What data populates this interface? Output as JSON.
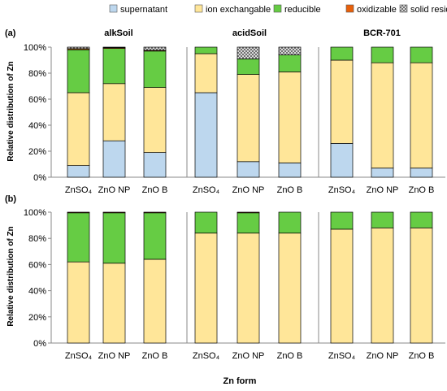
{
  "legend": [
    {
      "name": "supernatant",
      "color": "#BDD7EE",
      "pattern": "solid"
    },
    {
      "name": "ion exchangable",
      "color": "#FFE699",
      "pattern": "solid"
    },
    {
      "name": "reducible",
      "color": "#66CC44",
      "pattern": "solid"
    },
    {
      "name": "oxidizable",
      "color": "#E8600A",
      "pattern": "solid"
    },
    {
      "name": "solid residue",
      "color": "#AFAFAF",
      "pattern": "checker"
    }
  ],
  "ylabel": "Relative distribution of Zn",
  "xlabel": "Zn form",
  "panel_titles": [
    "alkSoil",
    "acidSoil",
    "BCR-701"
  ],
  "row_labels": [
    "(a)",
    "(b)"
  ],
  "categories": [
    "ZnSO₄",
    "ZnO NP",
    "ZnO B"
  ],
  "yticks": [
    "0%",
    "20%",
    "40%",
    "60%",
    "80%",
    "100%"
  ],
  "chart_data": [
    {
      "row": "(a)",
      "panel": "alkSoil",
      "type": "stacked-bar",
      "categories": [
        "ZnSO₄",
        "ZnO NP",
        "ZnO B"
      ],
      "ylim": [
        0,
        100
      ],
      "series": [
        {
          "name": "supernatant",
          "values": [
            9,
            28,
            19
          ]
        },
        {
          "name": "ion exchangable",
          "values": [
            56,
            44,
            50
          ]
        },
        {
          "name": "reducible",
          "values": [
            33,
            27,
            28
          ]
        },
        {
          "name": "oxidizable",
          "values": [
            0.8,
            0.6,
            0.6
          ]
        },
        {
          "name": "solid residue",
          "values": [
            1.2,
            0.4,
            2.4
          ]
        }
      ]
    },
    {
      "row": "(a)",
      "panel": "acidSoil",
      "type": "stacked-bar",
      "categories": [
        "ZnSO₄",
        "ZnO NP",
        "ZnO B"
      ],
      "ylim": [
        0,
        100
      ],
      "series": [
        {
          "name": "supernatant",
          "values": [
            65,
            12,
            11
          ]
        },
        {
          "name": "ion exchangable",
          "values": [
            30,
            67,
            70
          ]
        },
        {
          "name": "reducible",
          "values": [
            5,
            12,
            13
          ]
        },
        {
          "name": "oxidizable",
          "values": [
            0,
            0,
            0
          ]
        },
        {
          "name": "solid residue",
          "values": [
            0,
            9,
            6
          ]
        }
      ]
    },
    {
      "row": "(a)",
      "panel": "BCR-701",
      "type": "stacked-bar",
      "categories": [
        "ZnSO₄",
        "ZnO NP",
        "ZnO B"
      ],
      "ylim": [
        0,
        100
      ],
      "series": [
        {
          "name": "supernatant",
          "values": [
            26,
            7,
            7
          ]
        },
        {
          "name": "ion exchangable",
          "values": [
            64,
            81,
            81
          ]
        },
        {
          "name": "reducible",
          "values": [
            10,
            12,
            12
          ]
        },
        {
          "name": "oxidizable",
          "values": [
            0,
            0,
            0
          ]
        },
        {
          "name": "solid residue",
          "values": [
            0,
            0,
            0
          ]
        }
      ]
    },
    {
      "row": "(b)",
      "panel": "alkSoil",
      "type": "stacked-bar",
      "categories": [
        "ZnSO₄",
        "ZnO NP",
        "ZnO B"
      ],
      "ylim": [
        0,
        100
      ],
      "series": [
        {
          "name": "supernatant",
          "values": [
            0,
            0,
            0
          ]
        },
        {
          "name": "ion exchangable",
          "values": [
            62,
            61,
            64
          ]
        },
        {
          "name": "reducible",
          "values": [
            37.5,
            38.5,
            35.5
          ]
        },
        {
          "name": "oxidizable",
          "values": [
            0.5,
            0.5,
            0.5
          ]
        },
        {
          "name": "solid residue",
          "values": [
            0,
            0,
            0
          ]
        }
      ]
    },
    {
      "row": "(b)",
      "panel": "acidSoil",
      "type": "stacked-bar",
      "categories": [
        "ZnSO₄",
        "ZnO NP",
        "ZnO B"
      ],
      "ylim": [
        0,
        100
      ],
      "series": [
        {
          "name": "supernatant",
          "values": [
            0,
            0,
            0
          ]
        },
        {
          "name": "ion exchangable",
          "values": [
            84,
            84,
            84
          ]
        },
        {
          "name": "reducible",
          "values": [
            16,
            15.5,
            16
          ]
        },
        {
          "name": "oxidizable",
          "values": [
            0,
            0.5,
            0
          ]
        },
        {
          "name": "solid residue",
          "values": [
            0,
            0,
            0
          ]
        }
      ]
    },
    {
      "row": "(b)",
      "panel": "BCR-701",
      "type": "stacked-bar",
      "categories": [
        "ZnSO₄",
        "ZnO NP",
        "ZnO B"
      ],
      "ylim": [
        0,
        100
      ],
      "series": [
        {
          "name": "supernatant",
          "values": [
            0,
            0,
            0
          ]
        },
        {
          "name": "ion exchangable",
          "values": [
            87,
            88,
            88
          ]
        },
        {
          "name": "reducible",
          "values": [
            13,
            12,
            12
          ]
        },
        {
          "name": "oxidizable",
          "values": [
            0,
            0,
            0
          ]
        },
        {
          "name": "solid residue",
          "values": [
            0,
            0,
            0
          ]
        }
      ]
    }
  ]
}
